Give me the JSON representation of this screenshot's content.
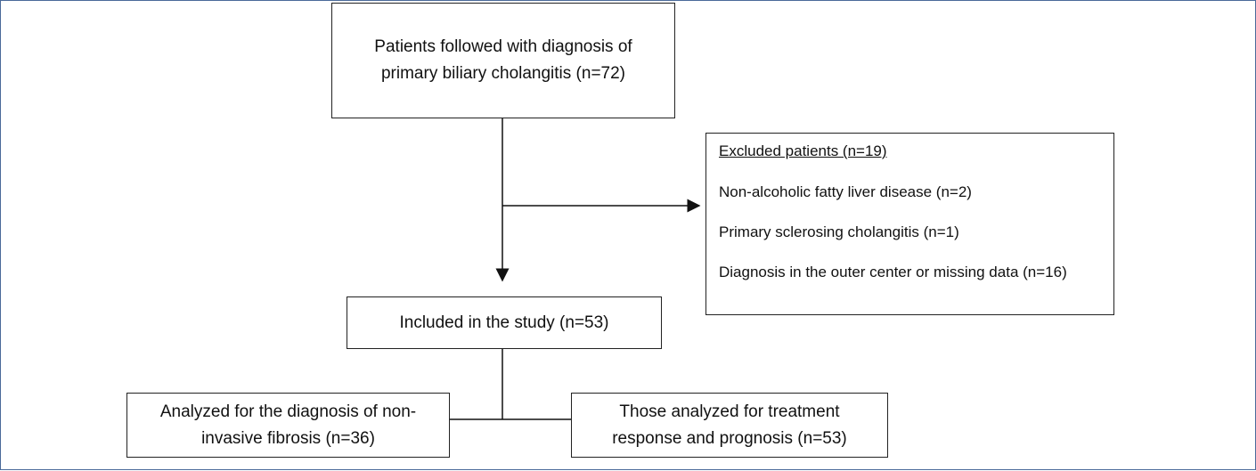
{
  "nodes": [
    {
      "lines": [
        "Patients followed with diagnosis of",
        "primary biliary cholangitis (n=72)"
      ]
    },
    {
      "lines": [
        "Included in the study (n=53)"
      ]
    },
    {
      "lines": [
        "Analyzed for the diagnosis of non-",
        "invasive fibrosis (n=36)"
      ]
    },
    {
      "lines": [
        "Those analyzed for treatment",
        "response and prognosis (n=53)"
      ]
    }
  ],
  "excluded": {
    "title": "Excluded patients (n=19)",
    "items": [
      "Non-alcoholic fatty liver disease (n=2)",
      "Primary sclerosing cholangitis (n=1)",
      "Diagnosis in the outer center or missing data (n=16)"
    ]
  }
}
